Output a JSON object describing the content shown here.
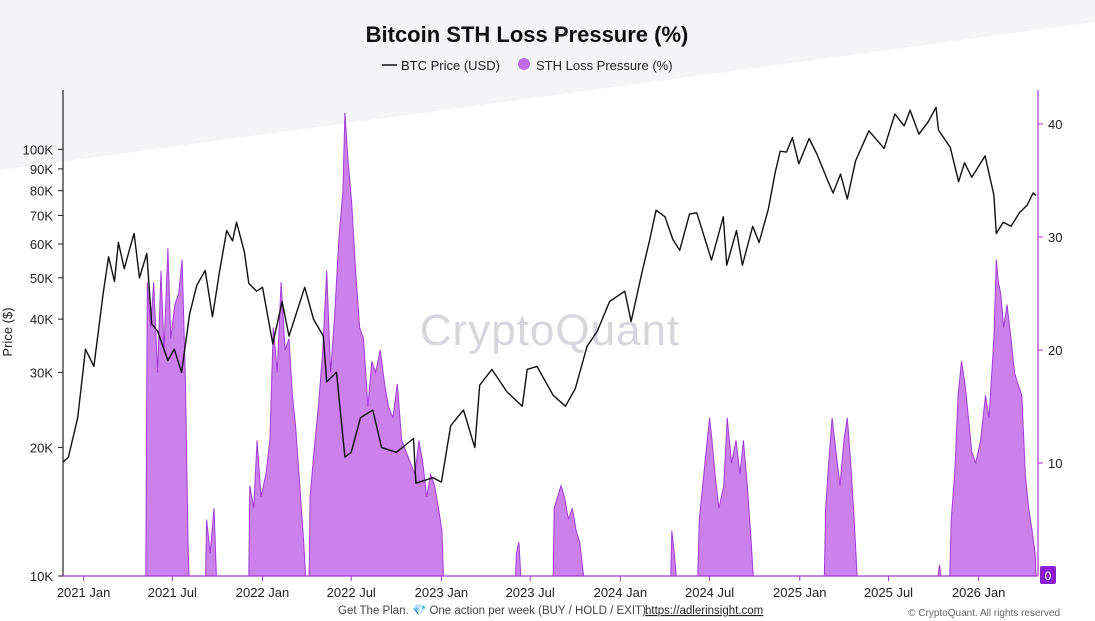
{
  "chart_data": {
    "type": "line",
    "title": "Bitcoin STH Loss Pressure (%)",
    "ylabel": "Price ($)",
    "y_scale": "log",
    "ylim": [
      10000,
      150000
    ],
    "y2lim": [
      0,
      40
    ],
    "x_ticks": [
      "2021 Jan",
      "2021 Jul",
      "2022 Jan",
      "2022 Jul",
      "2023 Jan",
      "2023 Jul",
      "2024 Jan",
      "2024 Jul",
      "2025 Jan",
      "2025 Jul",
      "2026 Jan"
    ],
    "y_ticks": [
      {
        "label": "10K",
        "value": 10000
      },
      {
        "label": "20K",
        "value": 20000
      },
      {
        "label": "30K",
        "value": 30000
      },
      {
        "label": "40K",
        "value": 40000
      },
      {
        "label": "50K",
        "value": 50000
      },
      {
        "label": "60K",
        "value": 60000
      },
      {
        "label": "70K",
        "value": 70000
      },
      {
        "label": "80K",
        "value": 80000
      },
      {
        "label": "90K",
        "value": 90000
      },
      {
        "label": "100K",
        "value": 100000
      }
    ],
    "y2_ticks": [
      {
        "label": "10",
        "value": 10
      },
      {
        "label": "20",
        "value": 20
      },
      {
        "label": "30",
        "value": 30
      },
      {
        "label": "40",
        "value": 40
      }
    ],
    "current_value_badge": "0",
    "legend_position": "top-center",
    "series": [
      {
        "name": "BTC Price (USD)",
        "axis": "left",
        "color": "#111111",
        "points": [
          [
            "2020-11-20",
            18500
          ],
          [
            "2020-12-01",
            19000
          ],
          [
            "2020-12-20",
            23500
          ],
          [
            "2021-01-05",
            34000
          ],
          [
            "2021-01-22",
            31000
          ],
          [
            "2021-02-10",
            46000
          ],
          [
            "2021-02-21",
            56000
          ],
          [
            "2021-03-05",
            49000
          ],
          [
            "2021-03-13",
            60500
          ],
          [
            "2021-03-25",
            52500
          ],
          [
            "2021-04-05",
            58500
          ],
          [
            "2021-04-14",
            63500
          ],
          [
            "2021-04-25",
            50000
          ],
          [
            "2021-05-10",
            57000
          ],
          [
            "2021-05-20",
            39000
          ],
          [
            "2021-06-01",
            37500
          ],
          [
            "2021-06-22",
            32000
          ],
          [
            "2021-07-05",
            34000
          ],
          [
            "2021-07-20",
            30000
          ],
          [
            "2021-08-05",
            41000
          ],
          [
            "2021-08-20",
            48000
          ],
          [
            "2021-09-06",
            52000
          ],
          [
            "2021-09-21",
            40500
          ],
          [
            "2021-10-05",
            51500
          ],
          [
            "2021-10-20",
            64500
          ],
          [
            "2021-11-01",
            61000
          ],
          [
            "2021-11-09",
            67500
          ],
          [
            "2021-11-25",
            57500
          ],
          [
            "2021-12-04",
            48500
          ],
          [
            "2021-12-20",
            46500
          ],
          [
            "2022-01-01",
            47500
          ],
          [
            "2022-01-22",
            35000
          ],
          [
            "2022-02-10",
            44000
          ],
          [
            "2022-02-24",
            36500
          ],
          [
            "2022-03-28",
            47500
          ],
          [
            "2022-04-15",
            40000
          ],
          [
            "2022-05-05",
            36500
          ],
          [
            "2022-05-12",
            28500
          ],
          [
            "2022-06-01",
            30000
          ],
          [
            "2022-06-18",
            19000
          ],
          [
            "2022-07-01",
            19500
          ],
          [
            "2022-07-20",
            23500
          ],
          [
            "2022-08-14",
            24500
          ],
          [
            "2022-09-01",
            20000
          ],
          [
            "2022-10-01",
            19500
          ],
          [
            "2022-11-05",
            21000
          ],
          [
            "2022-11-10",
            16500
          ],
          [
            "2022-12-15",
            17000
          ],
          [
            "2023-01-01",
            16600
          ],
          [
            "2023-01-20",
            22500
          ],
          [
            "2023-02-15",
            24500
          ],
          [
            "2023-03-10",
            20000
          ],
          [
            "2023-03-20",
            28000
          ],
          [
            "2023-04-14",
            30500
          ],
          [
            "2023-05-15",
            27000
          ],
          [
            "2023-06-15",
            25000
          ],
          [
            "2023-06-25",
            30500
          ],
          [
            "2023-07-15",
            31000
          ],
          [
            "2023-08-17",
            26500
          ],
          [
            "2023-09-11",
            25000
          ],
          [
            "2023-10-01",
            27500
          ],
          [
            "2023-10-25",
            34500
          ],
          [
            "2023-11-15",
            37500
          ],
          [
            "2023-12-10",
            44000
          ],
          [
            "2024-01-10",
            46500
          ],
          [
            "2024-01-23",
            39500
          ],
          [
            "2024-02-15",
            52000
          ],
          [
            "2024-03-01",
            61500
          ],
          [
            "2024-03-14",
            72000
          ],
          [
            "2024-04-01",
            69500
          ],
          [
            "2024-04-17",
            61500
          ],
          [
            "2024-05-01",
            58000
          ],
          [
            "2024-05-21",
            70500
          ],
          [
            "2024-06-05",
            71000
          ],
          [
            "2024-07-05",
            55000
          ],
          [
            "2024-07-29",
            69500
          ],
          [
            "2024-08-05",
            53500
          ],
          [
            "2024-08-25",
            64500
          ],
          [
            "2024-09-06",
            53500
          ],
          [
            "2024-09-27",
            66000
          ],
          [
            "2024-10-10",
            60500
          ],
          [
            "2024-10-29",
            72500
          ],
          [
            "2024-11-12",
            88500
          ],
          [
            "2024-11-22",
            99000
          ],
          [
            "2024-12-05",
            98500
          ],
          [
            "2024-12-17",
            106500
          ],
          [
            "2024-12-30",
            92500
          ],
          [
            "2025-01-20",
            106000
          ],
          [
            "2025-02-05",
            97500
          ],
          [
            "2025-02-27",
            84500
          ],
          [
            "2025-03-10",
            79000
          ],
          [
            "2025-03-25",
            87500
          ],
          [
            "2025-04-08",
            76500
          ],
          [
            "2025-04-25",
            94000
          ],
          [
            "2025-05-22",
            110500
          ],
          [
            "2025-06-22",
            100500
          ],
          [
            "2025-07-14",
            121000
          ],
          [
            "2025-08-02",
            113500
          ],
          [
            "2025-08-14",
            123500
          ],
          [
            "2025-09-01",
            108500
          ],
          [
            "2025-09-20",
            116000
          ],
          [
            "2025-10-06",
            125500
          ],
          [
            "2025-10-11",
            111000
          ],
          [
            "2025-11-04",
            101000
          ],
          [
            "2025-11-21",
            84000
          ],
          [
            "2025-12-03",
            93000
          ],
          [
            "2025-12-18",
            86000
          ],
          [
            "2026-01-14",
            96500
          ],
          [
            "2026-02-01",
            78000
          ],
          [
            "2026-02-06",
            63500
          ],
          [
            "2026-02-20",
            67500
          ],
          [
            "2026-03-08",
            66000
          ],
          [
            "2026-03-25",
            71000
          ],
          [
            "2026-04-10",
            74000
          ],
          [
            "2026-04-22",
            79000
          ],
          [
            "2026-04-28",
            78000
          ]
        ]
      },
      {
        "name": "STH Loss Pressure (%)",
        "axis": "right",
        "type": "area",
        "color": "#c26ae8",
        "stroke": "#a13bd6",
        "points": [
          [
            "2020-11-20",
            0
          ],
          [
            "2021-05-08",
            0
          ],
          [
            "2021-05-11",
            26
          ],
          [
            "2021-05-18",
            22
          ],
          [
            "2021-05-24",
            26
          ],
          [
            "2021-06-01",
            18
          ],
          [
            "2021-06-08",
            27
          ],
          [
            "2021-06-14",
            20
          ],
          [
            "2021-06-22",
            29
          ],
          [
            "2021-06-28",
            21
          ],
          [
            "2021-07-06",
            24
          ],
          [
            "2021-07-14",
            25
          ],
          [
            "2021-07-21",
            28
          ],
          [
            "2021-07-28",
            17
          ],
          [
            "2021-08-02",
            3
          ],
          [
            "2021-08-04",
            0
          ],
          [
            "2021-09-07",
            0
          ],
          [
            "2021-09-09",
            5
          ],
          [
            "2021-09-16",
            2
          ],
          [
            "2021-09-24",
            6
          ],
          [
            "2021-09-29",
            0
          ],
          [
            "2021-12-04",
            0
          ],
          [
            "2021-12-06",
            8
          ],
          [
            "2021-12-14",
            6
          ],
          [
            "2021-12-21",
            12
          ],
          [
            "2021-12-29",
            7
          ],
          [
            "2022-01-08",
            9
          ],
          [
            "2022-01-16",
            12
          ],
          [
            "2022-01-23",
            22
          ],
          [
            "2022-01-31",
            18
          ],
          [
            "2022-02-08",
            26
          ],
          [
            "2022-02-16",
            20
          ],
          [
            "2022-02-24",
            21
          ],
          [
            "2022-03-03",
            16
          ],
          [
            "2022-03-10",
            13
          ],
          [
            "2022-03-18",
            8
          ],
          [
            "2022-03-26",
            3
          ],
          [
            "2022-03-30",
            0
          ],
          [
            "2022-04-06",
            0
          ],
          [
            "2022-04-08",
            7
          ],
          [
            "2022-04-16",
            11
          ],
          [
            "2022-04-25",
            15
          ],
          [
            "2022-05-04",
            20
          ],
          [
            "2022-05-12",
            27
          ],
          [
            "2022-05-20",
            18
          ],
          [
            "2022-05-28",
            23
          ],
          [
            "2022-06-06",
            30
          ],
          [
            "2022-06-14",
            34
          ],
          [
            "2022-06-18",
            41
          ],
          [
            "2022-06-24",
            37
          ],
          [
            "2022-07-02",
            33
          ],
          [
            "2022-07-10",
            27
          ],
          [
            "2022-07-18",
            22
          ],
          [
            "2022-07-26",
            21
          ],
          [
            "2022-08-04",
            15
          ],
          [
            "2022-08-12",
            19
          ],
          [
            "2022-08-20",
            18
          ],
          [
            "2022-08-29",
            20
          ],
          [
            "2022-09-07",
            17
          ],
          [
            "2022-09-15",
            15
          ],
          [
            "2022-09-24",
            14
          ],
          [
            "2022-10-03",
            17
          ],
          [
            "2022-10-12",
            12
          ],
          [
            "2022-10-21",
            11
          ],
          [
            "2022-10-30",
            10
          ],
          [
            "2022-11-08",
            9
          ],
          [
            "2022-11-16",
            12
          ],
          [
            "2022-11-24",
            10
          ],
          [
            "2022-12-02",
            7
          ],
          [
            "2022-12-10",
            9
          ],
          [
            "2022-12-18",
            8
          ],
          [
            "2022-12-26",
            6
          ],
          [
            "2023-01-02",
            4
          ],
          [
            "2023-01-05",
            0
          ],
          [
            "2023-06-01",
            0
          ],
          [
            "2023-06-03",
            2
          ],
          [
            "2023-06-08",
            3
          ],
          [
            "2023-06-12",
            0
          ],
          [
            "2023-08-17",
            0
          ],
          [
            "2023-08-19",
            6
          ],
          [
            "2023-08-26",
            7
          ],
          [
            "2023-09-02",
            8
          ],
          [
            "2023-09-09",
            7
          ],
          [
            "2023-09-17",
            5
          ],
          [
            "2023-09-25",
            6
          ],
          [
            "2023-10-03",
            4
          ],
          [
            "2023-10-10",
            3
          ],
          [
            "2023-10-18",
            0
          ],
          [
            "2024-03-25",
            0
          ],
          [
            "2024-04-13",
            0
          ],
          [
            "2024-04-15",
            4
          ],
          [
            "2024-04-20",
            2
          ],
          [
            "2024-04-24",
            0
          ],
          [
            "2024-06-07",
            0
          ],
          [
            "2024-06-10",
            5
          ],
          [
            "2024-06-17",
            8
          ],
          [
            "2024-06-24",
            11
          ],
          [
            "2024-07-01",
            14
          ],
          [
            "2024-07-06",
            12
          ],
          [
            "2024-07-12",
            9
          ],
          [
            "2024-07-20",
            6
          ],
          [
            "2024-07-30",
            8
          ],
          [
            "2024-08-06",
            14
          ],
          [
            "2024-08-15",
            10
          ],
          [
            "2024-08-24",
            12
          ],
          [
            "2024-09-01",
            9
          ],
          [
            "2024-09-08",
            12
          ],
          [
            "2024-09-16",
            8
          ],
          [
            "2024-09-24",
            3
          ],
          [
            "2024-09-28",
            0
          ],
          [
            "2025-02-20",
            0
          ],
          [
            "2025-02-23",
            6
          ],
          [
            "2025-03-01",
            10
          ],
          [
            "2025-03-08",
            14
          ],
          [
            "2025-03-16",
            11
          ],
          [
            "2025-03-24",
            8
          ],
          [
            "2025-04-01",
            12
          ],
          [
            "2025-04-08",
            14
          ],
          [
            "2025-04-15",
            10
          ],
          [
            "2025-04-22",
            5
          ],
          [
            "2025-04-28",
            0
          ],
          [
            "2025-10-10",
            0
          ],
          [
            "2025-10-13",
            1
          ],
          [
            "2025-10-16",
            0
          ],
          [
            "2025-11-03",
            0
          ],
          [
            "2025-11-06",
            5
          ],
          [
            "2025-11-13",
            9
          ],
          [
            "2025-11-20",
            16
          ],
          [
            "2025-11-27",
            19
          ],
          [
            "2025-12-04",
            17
          ],
          [
            "2025-12-11",
            14
          ],
          [
            "2025-12-18",
            11
          ],
          [
            "2025-12-26",
            10
          ],
          [
            "2026-01-05",
            12
          ],
          [
            "2026-01-15",
            16
          ],
          [
            "2026-01-22",
            14
          ],
          [
            "2026-02-01",
            21
          ],
          [
            "2026-02-06",
            28
          ],
          [
            "2026-02-10",
            26
          ],
          [
            "2026-02-15",
            25
          ],
          [
            "2026-02-21",
            22
          ],
          [
            "2026-02-28",
            24
          ],
          [
            "2026-03-08",
            21
          ],
          [
            "2026-03-15",
            18
          ],
          [
            "2026-03-22",
            17
          ],
          [
            "2026-03-30",
            16
          ],
          [
            "2026-04-06",
            9
          ],
          [
            "2026-04-13",
            6
          ],
          [
            "2026-04-20",
            4
          ],
          [
            "2026-04-26",
            2
          ],
          [
            "2026-04-28",
            0
          ]
        ]
      }
    ]
  },
  "watermark": "CryptoQuant",
  "footer": {
    "promo_text": "Get The Plan. 💎 One action per week (BUY / HOLD / EXIT).",
    "link_text": "https://adlerinsight.com",
    "copyright": "© CryptoQuant. All rights reserved"
  }
}
